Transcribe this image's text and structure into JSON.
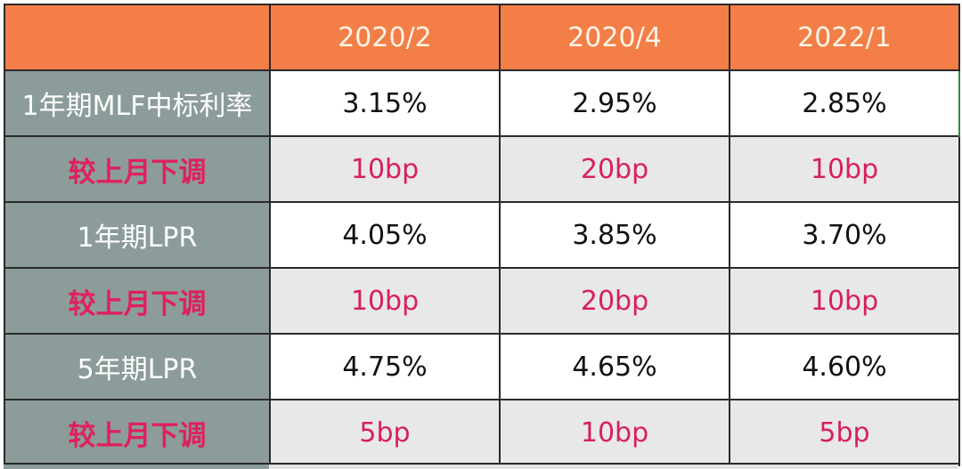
{
  "table": {
    "columns": [
      "",
      "2020/2",
      "2020/4",
      "2022/1"
    ],
    "rows": [
      {
        "label": "1年期MLF中标利率",
        "kind": "rate",
        "values": [
          "3.15%",
          "2.95%",
          "2.85%"
        ]
      },
      {
        "label": "较上月下调",
        "kind": "change",
        "values": [
          "10bp",
          "20bp",
          "10bp"
        ]
      },
      {
        "label": "1年期LPR",
        "kind": "rate",
        "values": [
          "4.05%",
          "3.85%",
          "3.70%"
        ]
      },
      {
        "label": "较上月下调",
        "kind": "change",
        "values": [
          "10bp",
          "20bp",
          "10bp"
        ]
      },
      {
        "label": "5年期LPR",
        "kind": "rate",
        "values": [
          "4.75%",
          "4.65%",
          "4.60%"
        ]
      },
      {
        "label": "较上月下调",
        "kind": "change",
        "values": [
          "5bp",
          "10bp",
          "5bp"
        ]
      }
    ]
  },
  "colors": {
    "header_bg": "#f47e47",
    "label_bg": "#8c9c9b",
    "change_text": "#d8205a",
    "change_bg": "#e8e8e8"
  }
}
